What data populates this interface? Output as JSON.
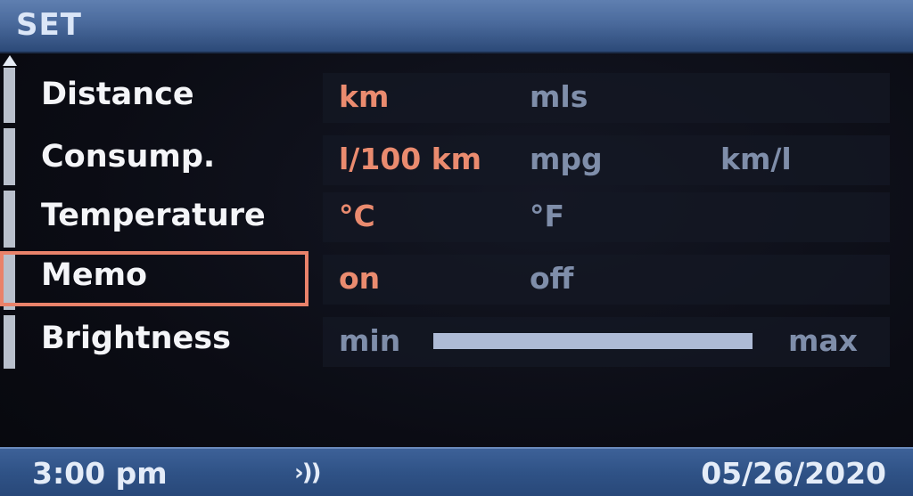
{
  "title": "SET",
  "menu": [
    {
      "label": "Distance",
      "options": [
        {
          "text": "km",
          "active": true
        },
        {
          "text": "mls",
          "active": false
        }
      ]
    },
    {
      "label": "Consump.",
      "options": [
        {
          "text": "l/100 km",
          "active": true
        },
        {
          "text": "mpg",
          "active": false
        },
        {
          "text": "km/l",
          "active": false
        }
      ]
    },
    {
      "label": "Temperature",
      "options": [
        {
          "text": "°C",
          "active": true
        },
        {
          "text": "°F",
          "active": false
        }
      ]
    },
    {
      "label": "Memo",
      "selected": true,
      "options": [
        {
          "text": "on",
          "active": true
        },
        {
          "text": "off",
          "active": false
        }
      ]
    },
    {
      "label": "Brightness",
      "min_label": "min",
      "max_label": "max",
      "level": 1.0
    }
  ],
  "status": {
    "time": "3:00 pm",
    "signal": "›))",
    "date": "05/26/2020"
  },
  "colors": {
    "active": "#ea8b6f",
    "inactive": "#7f8eaa",
    "selection_border": "#e9826a",
    "title_bar": "#4a6a9c",
    "status_bar": "#2f5286"
  }
}
